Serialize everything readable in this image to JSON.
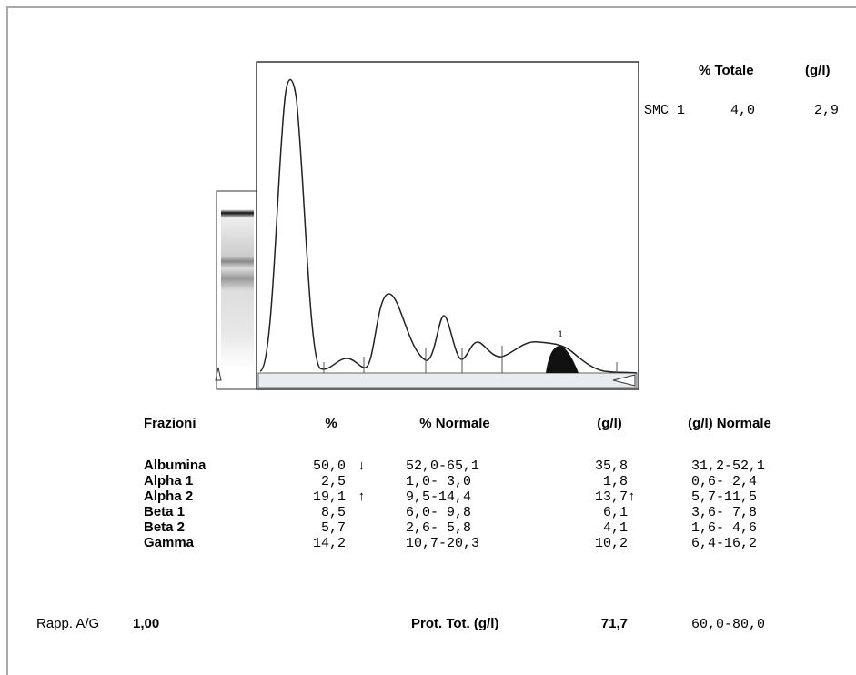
{
  "summary": {
    "header": [
      "% Totale",
      "(g/l)"
    ],
    "row": [
      "SMC 1",
      "4,0",
      "2,9"
    ]
  },
  "peak_label": "1",
  "table": {
    "headers": [
      "Frazioni",
      "%",
      "% Normale",
      "(g/l)",
      "(g/l) Normale"
    ],
    "rows": [
      [
        "Albumina",
        "50,0",
        "↓",
        "52,0-65,1",
        "35,8",
        "",
        "31,2-52,1"
      ],
      [
        "Alpha 1",
        "2,5",
        "",
        "1,0- 3,0",
        "1,8",
        "",
        "0,6- 2,4"
      ],
      [
        "Alpha 2",
        "19,1",
        "↑",
        "9,5-14,4",
        "13,7",
        "↑",
        "5,7-11,5"
      ],
      [
        "Beta 1",
        "8,5",
        "",
        "6,0- 9,8",
        "6,1",
        "",
        "3,6- 7,8"
      ],
      [
        "Beta 2",
        "5,7",
        "",
        "2,6- 5,8",
        "4,1",
        "",
        "1,6- 4,6"
      ],
      [
        "Gamma",
        "14,2",
        "",
        "10,7-20,3",
        "10,2",
        "",
        "6,4-16,2"
      ]
    ]
  },
  "footer": {
    "ratio_label": "Rapp. A/G",
    "ratio_value": "1,00",
    "total_label": "Prot. Tot. (g/l)",
    "total_value": "71,7",
    "total_range": "60,0-80,0"
  }
}
